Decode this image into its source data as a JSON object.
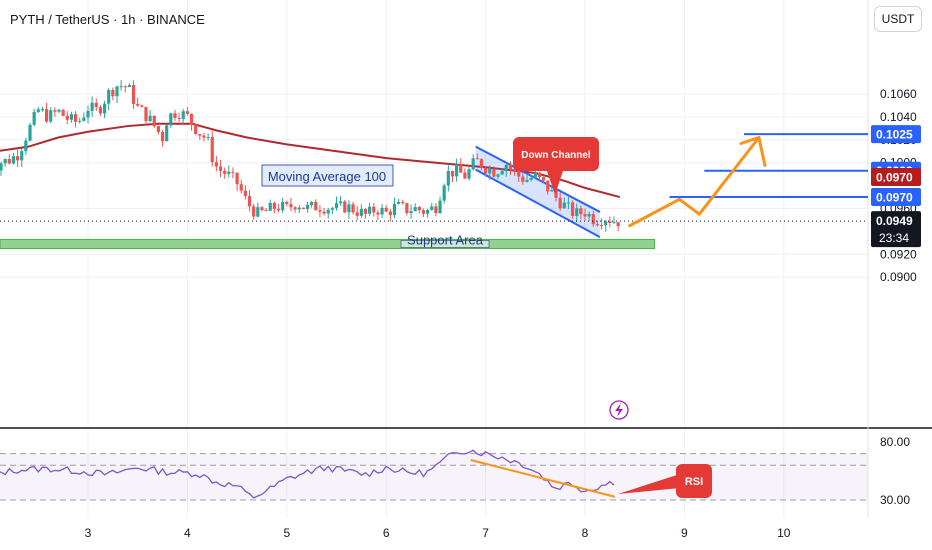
{
  "header": {
    "title": "PYTH / TetherUS · 1h · BINANCE",
    "currency_button": "USDT"
  },
  "colors": {
    "up": "#26a69a",
    "down": "#ef5350",
    "ma": "#b2282d",
    "channel": "#2962ff",
    "arrow": "#f7931a",
    "support": "#7fc97f",
    "rsi": "#7e57c2",
    "badge_blue": "#2962ff",
    "badge_red": "#b71c1c"
  },
  "annotations": {
    "down_channel": "Down Channel",
    "moving_average": "Moving Average 100",
    "support_area": "Support Area",
    "rsi": "RSI"
  },
  "chart_data": [
    {
      "type": "candlestick",
      "title": "PYTH / TetherUS · 1h · BINANCE",
      "x_ticks": [
        "3",
        "4",
        "5",
        "6",
        "7",
        "8",
        "9",
        "10"
      ],
      "y_ticks": [
        "0.1060",
        "0.1040",
        "0.1020",
        "0.1000",
        "0.0960",
        "0.0920",
        "0.0900"
      ],
      "ylim": [
        0.09,
        0.1078
      ],
      "grid": true,
      "series": [
        {
          "name": "Moving Average 100",
          "points": [
            [
              2.0,
              0.1009
            ],
            [
              2.4,
              0.1014
            ],
            [
              2.7,
              0.1022
            ],
            [
              3.0,
              0.1027
            ],
            [
              3.4,
              0.1032
            ],
            [
              3.7,
              0.1034
            ],
            [
              4.05,
              0.1034
            ],
            [
              4.3,
              0.1028
            ],
            [
              4.6,
              0.1022
            ],
            [
              5.0,
              0.1016
            ],
            [
              5.5,
              0.101
            ],
            [
              6.0,
              0.1004
            ],
            [
              6.5,
              0.1
            ],
            [
              7.0,
              0.0996
            ],
            [
              7.5,
              0.0991
            ],
            [
              7.8,
              0.0984
            ],
            [
              8.0,
              0.0978
            ],
            [
              8.35,
              0.097
            ]
          ]
        },
        {
          "name": "price",
          "points": [
            [
              2.0,
              0.099
            ],
            [
              2.1,
              0.1
            ],
            [
              2.2,
              0.1002
            ],
            [
              2.3,
              0.1008
            ],
            [
              2.4,
              0.1028
            ],
            [
              2.5,
              0.1046
            ],
            [
              2.6,
              0.104
            ],
            [
              2.7,
              0.1045
            ],
            [
              2.8,
              0.1038
            ],
            [
              2.9,
              0.1035
            ],
            [
              3.0,
              0.1048
            ],
            [
              3.1,
              0.1045
            ],
            [
              3.2,
              0.106
            ],
            [
              3.3,
              0.1068
            ],
            [
              3.4,
              0.1066
            ],
            [
              3.5,
              0.1048
            ],
            [
              3.6,
              0.104
            ],
            [
              3.7,
              0.1028
            ],
            [
              3.75,
              0.1022
            ],
            [
              3.8,
              0.104
            ],
            [
              3.9,
              0.1045
            ],
            [
              4.0,
              0.104
            ],
            [
              4.1,
              0.1028
            ],
            [
              4.2,
              0.102
            ],
            [
              4.25,
              0.1005
            ],
            [
              4.3,
              0.0995
            ],
            [
              4.4,
              0.099
            ],
            [
              4.5,
              0.0982
            ],
            [
              4.6,
              0.0965
            ],
            [
              4.7,
              0.0955
            ],
            [
              4.8,
              0.0958
            ],
            [
              4.9,
              0.0962
            ],
            [
              5.0,
              0.096
            ],
            [
              5.1,
              0.0965
            ],
            [
              5.2,
              0.096
            ],
            [
              5.3,
              0.0962
            ],
            [
              5.4,
              0.0961
            ],
            [
              5.5,
              0.096
            ],
            [
              5.6,
              0.0962
            ],
            [
              5.7,
              0.0958
            ],
            [
              5.8,
              0.0954
            ],
            [
              5.9,
              0.096
            ],
            [
              6.0,
              0.0956
            ],
            [
              6.1,
              0.0962
            ],
            [
              6.2,
              0.0959
            ],
            [
              6.3,
              0.096
            ],
            [
              6.4,
              0.0957
            ],
            [
              6.5,
              0.0962
            ],
            [
              6.55,
              0.0975
            ],
            [
              6.6,
              0.099
            ],
            [
              6.7,
              0.0993
            ],
            [
              6.8,
              0.0988
            ],
            [
              6.9,
              0.1002
            ],
            [
              7.0,
              0.0996
            ],
            [
              7.1,
              0.0992
            ],
            [
              7.2,
              0.1
            ],
            [
              7.3,
              0.099
            ],
            [
              7.4,
              0.0985
            ],
            [
              7.5,
              0.0988
            ],
            [
              7.6,
              0.098
            ],
            [
              7.7,
              0.097
            ],
            [
              7.8,
              0.0962
            ],
            [
              7.9,
              0.0955
            ],
            [
              8.0,
              0.0957
            ],
            [
              8.1,
              0.095
            ],
            [
              8.2,
              0.0952
            ],
            [
              8.3,
              0.0949
            ],
            [
              8.35,
              0.0949
            ]
          ]
        },
        {
          "name": "Down Channel",
          "upper": [
            [
              6.9,
              0.1014
            ],
            [
              8.15,
              0.0957
            ]
          ],
          "lower": [
            [
              6.9,
              0.0994
            ],
            [
              8.15,
              0.0935
            ]
          ]
        },
        {
          "name": "projection",
          "points": [
            [
              8.45,
              0.0945
            ],
            [
              8.95,
              0.0968
            ],
            [
              9.15,
              0.0955
            ],
            [
              9.75,
              0.1022
            ]
          ]
        }
      ],
      "levels": [
        {
          "value": 0.1025,
          "label": "0.1025",
          "x_start": 9.6
        },
        {
          "value": 0.0993,
          "label": "0.0993",
          "x_start": 9.2
        },
        {
          "value": 0.097,
          "label": "0.0970",
          "x_start": 8.85
        }
      ],
      "support_area": {
        "low": 0.0925,
        "high": 0.0933,
        "x_end": 8.7
      },
      "current_price": {
        "value": 0.0949,
        "label": "0.0949",
        "countdown": "23:34"
      },
      "ma_price_label": "0.0970"
    },
    {
      "type": "line",
      "title": "RSI",
      "y_ticks": [
        "80.00",
        "30.00"
      ],
      "ylim": [
        24,
        88
      ],
      "bands": [
        30,
        60,
        70
      ],
      "series": [
        {
          "name": "RSI",
          "points": [
            [
              2.0,
              52
            ],
            [
              2.3,
              56
            ],
            [
              2.6,
              57
            ],
            [
              2.9,
              55
            ],
            [
              3.2,
              52
            ],
            [
              3.5,
              58
            ],
            [
              3.8,
              54
            ],
            [
              4.1,
              53
            ],
            [
              4.3,
              45
            ],
            [
              4.5,
              42
            ],
            [
              4.65,
              32
            ],
            [
              4.8,
              38
            ],
            [
              5.0,
              48
            ],
            [
              5.2,
              54
            ],
            [
              5.4,
              58
            ],
            [
              5.6,
              55
            ],
            [
              5.8,
              52
            ],
            [
              6.0,
              58
            ],
            [
              6.2,
              54
            ],
            [
              6.4,
              53
            ],
            [
              6.55,
              62
            ],
            [
              6.7,
              72
            ],
            [
              6.85,
              73
            ],
            [
              7.0,
              70
            ],
            [
              7.2,
              66
            ],
            [
              7.4,
              60
            ],
            [
              7.55,
              52
            ],
            [
              7.7,
              40
            ],
            [
              7.85,
              45
            ],
            [
              8.0,
              38
            ],
            [
              8.15,
              42
            ],
            [
              8.3,
              46
            ]
          ]
        },
        {
          "name": "trendline",
          "points": [
            [
              6.85,
              80
            ],
            [
              8.3,
              38
            ]
          ]
        }
      ]
    }
  ]
}
